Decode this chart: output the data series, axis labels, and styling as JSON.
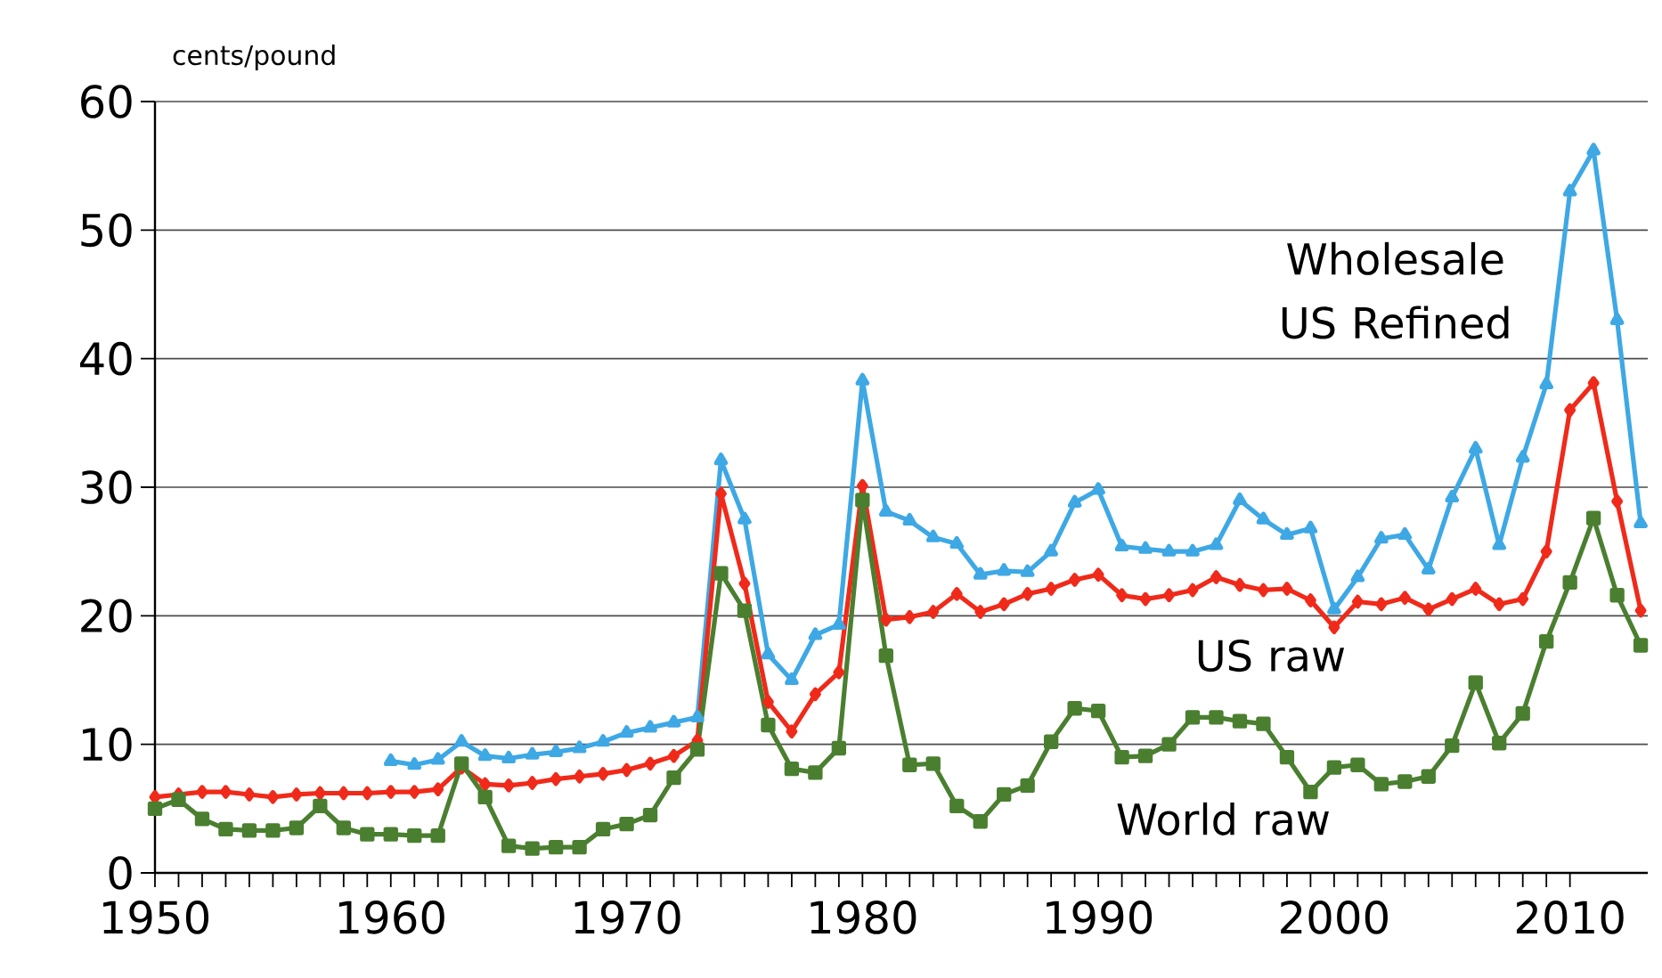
{
  "chart_data": {
    "type": "line",
    "ylabel": "cents/pound",
    "x": [
      1950,
      1951,
      1952,
      1953,
      1954,
      1955,
      1956,
      1957,
      1958,
      1959,
      1960,
      1961,
      1962,
      1963,
      1964,
      1965,
      1966,
      1967,
      1968,
      1969,
      1970,
      1971,
      1972,
      1973,
      1974,
      1975,
      1976,
      1977,
      1978,
      1979,
      1980,
      1981,
      1982,
      1983,
      1984,
      1985,
      1986,
      1987,
      1988,
      1989,
      1990,
      1991,
      1992,
      1993,
      1994,
      1995,
      1996,
      1997,
      1998,
      1999,
      2000,
      2001,
      2002,
      2003,
      2004,
      2005,
      2006,
      2007,
      2008,
      2009,
      2010,
      2011,
      2012,
      2013
    ],
    "series": [
      {
        "name": "Wholesale US Refined",
        "color": "#3ea8e5",
        "marker": "triangle",
        "values": [
          null,
          null,
          null,
          null,
          null,
          null,
          null,
          null,
          null,
          null,
          8.7,
          8.4,
          8.8,
          10.2,
          9.1,
          8.9,
          9.2,
          9.4,
          9.7,
          10.2,
          10.9,
          11.3,
          11.7,
          12.1,
          32.1,
          27.5,
          17.0,
          15.0,
          18.5,
          19.3,
          38.3,
          28.1,
          27.4,
          26.1,
          25.6,
          23.2,
          23.5,
          23.4,
          25.0,
          28.8,
          29.8,
          25.4,
          25.2,
          25.0,
          25.0,
          25.5,
          29.0,
          27.5,
          26.3,
          26.8,
          20.5,
          23.0,
          26.0,
          26.3,
          23.6,
          29.2,
          33.0,
          25.5,
          32.3,
          38.0,
          53.0,
          56.2,
          43.0,
          27.2
        ]
      },
      {
        "name": "US raw",
        "color": "#f02a1a",
        "marker": "diamond",
        "values": [
          5.9,
          6.1,
          6.3,
          6.3,
          6.1,
          5.9,
          6.1,
          6.2,
          6.2,
          6.2,
          6.3,
          6.3,
          6.5,
          8.2,
          6.9,
          6.8,
          7.0,
          7.3,
          7.5,
          7.7,
          8.0,
          8.5,
          9.1,
          10.3,
          29.5,
          22.5,
          13.3,
          11.0,
          13.9,
          15.6,
          30.1,
          19.7,
          19.9,
          20.3,
          21.7,
          20.3,
          20.9,
          21.7,
          22.1,
          22.8,
          23.2,
          21.6,
          21.3,
          21.6,
          22.0,
          23.0,
          22.4,
          22.0,
          22.1,
          21.2,
          19.1,
          21.1,
          20.9,
          21.4,
          20.5,
          21.3,
          22.1,
          20.9,
          21.3,
          25.0,
          36.0,
          38.1,
          28.9,
          20.4
        ]
      },
      {
        "name": "World raw",
        "color": "#4a7f30",
        "marker": "square",
        "values": [
          5.0,
          5.7,
          4.2,
          3.4,
          3.3,
          3.3,
          3.5,
          5.2,
          3.5,
          3.0,
          3.0,
          2.9,
          2.9,
          8.5,
          5.9,
          2.1,
          1.9,
          2.0,
          2.0,
          3.4,
          3.8,
          4.5,
          7.4,
          9.6,
          23.3,
          20.4,
          11.5,
          8.1,
          7.8,
          9.7,
          29.0,
          16.9,
          8.4,
          8.5,
          5.2,
          4.0,
          6.1,
          6.8,
          10.2,
          12.8,
          12.6,
          9.0,
          9.1,
          10.0,
          12.1,
          12.1,
          11.8,
          11.6,
          9.0,
          6.3,
          8.2,
          8.4,
          6.9,
          7.1,
          7.5,
          9.9,
          14.8,
          10.1,
          12.4,
          18.0,
          22.6,
          27.6,
          21.6,
          17.7
        ]
      }
    ],
    "xlim": [
      1950,
      2013.3
    ],
    "xticks": [
      1950,
      1960,
      1970,
      1980,
      1990,
      2000,
      2010
    ],
    "ylim": [
      0,
      60
    ],
    "yticks": [
      0,
      10,
      20,
      30,
      40,
      50,
      60
    ],
    "grid": "y",
    "legend": false
  }
}
